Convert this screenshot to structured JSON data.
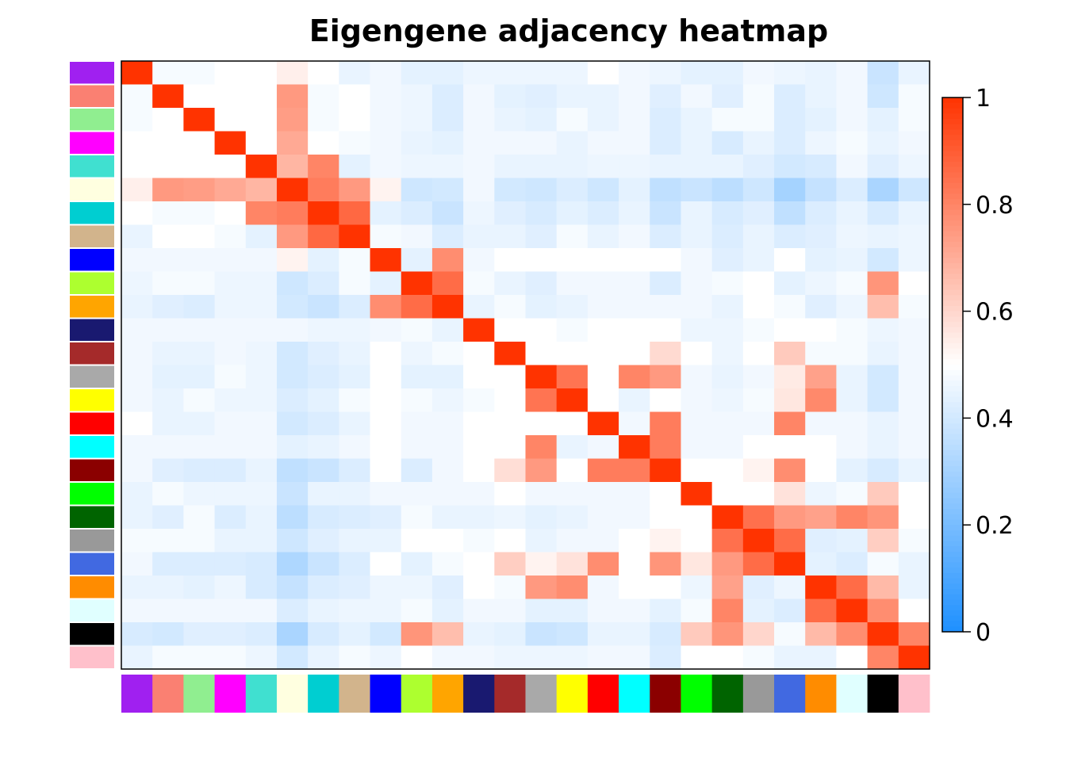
{
  "chart_data": {
    "type": "heatmap",
    "title": "Eigengene adjacency heatmap",
    "modules": [
      "purple",
      "salmon",
      "lightgreen",
      "magenta",
      "turquoise",
      "lightyellow",
      "darkturquoise",
      "tan",
      "blue",
      "greenyellow",
      "orange",
      "midnightblue",
      "brown",
      "darkgrey",
      "yellow",
      "red",
      "cyan",
      "darkred",
      "green",
      "darkgreen",
      "grey60",
      "royalblue",
      "darkorange",
      "lightcyan",
      "black",
      "pink"
    ],
    "module_colors": [
      "#a020f0",
      "#fa8072",
      "#90ee90",
      "#ff00ff",
      "#40e0d0",
      "#ffffe0",
      "#00ced1",
      "#d2b48c",
      "#0000ff",
      "#adff2f",
      "#ffa500",
      "#191970",
      "#a52a2a",
      "#a9a9a9",
      "#ffff00",
      "#ff0000",
      "#00ffff",
      "#8b0000",
      "#00ff00",
      "#006400",
      "#999999",
      "#4169e1",
      "#ff8c00",
      "#e0ffff",
      "#000000",
      "#ffc0cb"
    ],
    "values": [
      [
        1.0,
        0.48,
        0.48,
        0.5,
        0.5,
        0.54,
        0.5,
        0.45,
        0.47,
        0.44,
        0.44,
        0.46,
        0.46,
        0.46,
        0.46,
        0.5,
        0.47,
        0.46,
        0.44,
        0.44,
        0.47,
        0.46,
        0.45,
        0.47,
        0.38,
        0.45
      ],
      [
        0.48,
        1.0,
        0.5,
        0.5,
        0.5,
        0.75,
        0.48,
        0.5,
        0.47,
        0.46,
        0.42,
        0.47,
        0.44,
        0.43,
        0.45,
        0.45,
        0.47,
        0.43,
        0.47,
        0.43,
        0.48,
        0.42,
        0.45,
        0.47,
        0.39,
        0.48
      ],
      [
        0.48,
        0.5,
        1.0,
        0.5,
        0.5,
        0.74,
        0.48,
        0.5,
        0.47,
        0.46,
        0.42,
        0.47,
        0.45,
        0.44,
        0.48,
        0.45,
        0.47,
        0.42,
        0.45,
        0.48,
        0.48,
        0.42,
        0.44,
        0.47,
        0.44,
        0.48
      ],
      [
        0.5,
        0.5,
        0.5,
        1.0,
        0.5,
        0.71,
        0.5,
        0.48,
        0.47,
        0.45,
        0.44,
        0.47,
        0.47,
        0.47,
        0.45,
        0.47,
        0.47,
        0.42,
        0.45,
        0.41,
        0.45,
        0.42,
        0.46,
        0.48,
        0.45,
        0.47
      ],
      [
        0.5,
        0.5,
        0.5,
        0.5,
        1.0,
        0.68,
        0.8,
        0.44,
        0.47,
        0.46,
        0.46,
        0.47,
        0.45,
        0.45,
        0.45,
        0.46,
        0.46,
        0.45,
        0.45,
        0.45,
        0.43,
        0.4,
        0.41,
        0.47,
        0.43,
        0.46
      ],
      [
        0.54,
        0.75,
        0.74,
        0.71,
        0.68,
        1.0,
        0.82,
        0.75,
        0.53,
        0.39,
        0.4,
        0.47,
        0.4,
        0.39,
        0.42,
        0.39,
        0.44,
        0.36,
        0.38,
        0.35,
        0.39,
        0.3,
        0.37,
        0.42,
        0.31,
        0.39
      ],
      [
        0.5,
        0.48,
        0.48,
        0.5,
        0.8,
        0.82,
        1.0,
        0.87,
        0.44,
        0.42,
        0.38,
        0.46,
        0.43,
        0.41,
        0.44,
        0.42,
        0.45,
        0.38,
        0.45,
        0.41,
        0.43,
        0.36,
        0.42,
        0.45,
        0.41,
        0.45
      ],
      [
        0.45,
        0.5,
        0.5,
        0.48,
        0.44,
        0.75,
        0.87,
        1.0,
        0.48,
        0.47,
        0.42,
        0.45,
        0.45,
        0.43,
        0.48,
        0.45,
        0.47,
        0.42,
        0.45,
        0.42,
        0.45,
        0.42,
        0.43,
        0.46,
        0.45,
        0.46
      ],
      [
        0.47,
        0.47,
        0.47,
        0.47,
        0.47,
        0.53,
        0.44,
        0.48,
        1.0,
        0.44,
        0.78,
        0.47,
        0.5,
        0.5,
        0.5,
        0.5,
        0.5,
        0.5,
        0.47,
        0.43,
        0.45,
        0.5,
        0.44,
        0.45,
        0.4,
        0.46
      ],
      [
        0.46,
        0.48,
        0.48,
        0.46,
        0.46,
        0.39,
        0.42,
        0.48,
        0.44,
        1.0,
        0.86,
        0.48,
        0.45,
        0.43,
        0.47,
        0.47,
        0.47,
        0.42,
        0.47,
        0.48,
        0.5,
        0.44,
        0.46,
        0.48,
        0.76,
        0.5
      ],
      [
        0.45,
        0.43,
        0.42,
        0.46,
        0.46,
        0.4,
        0.38,
        0.42,
        0.78,
        0.86,
        1.0,
        0.45,
        0.48,
        0.44,
        0.45,
        0.47,
        0.47,
        0.47,
        0.47,
        0.45,
        0.5,
        0.48,
        0.43,
        0.46,
        0.66,
        0.48
      ],
      [
        0.47,
        0.47,
        0.47,
        0.47,
        0.47,
        0.47,
        0.46,
        0.46,
        0.47,
        0.48,
        0.45,
        1.0,
        0.5,
        0.5,
        0.48,
        0.5,
        0.5,
        0.5,
        0.46,
        0.46,
        0.48,
        0.5,
        0.5,
        0.48,
        0.46,
        0.47
      ],
      [
        0.47,
        0.45,
        0.45,
        0.47,
        0.46,
        0.4,
        0.43,
        0.45,
        0.5,
        0.46,
        0.48,
        0.5,
        1.0,
        0.5,
        0.5,
        0.5,
        0.5,
        0.59,
        0.5,
        0.46,
        0.5,
        0.63,
        0.48,
        0.48,
        0.45,
        0.47
      ],
      [
        0.47,
        0.44,
        0.44,
        0.48,
        0.46,
        0.4,
        0.42,
        0.44,
        0.5,
        0.44,
        0.44,
        0.5,
        0.5,
        1.0,
        0.84,
        0.5,
        0.8,
        0.75,
        0.47,
        0.45,
        0.47,
        0.55,
        0.73,
        0.45,
        0.4,
        0.47
      ],
      [
        0.47,
        0.45,
        0.48,
        0.46,
        0.46,
        0.42,
        0.44,
        0.48,
        0.5,
        0.48,
        0.46,
        0.48,
        0.5,
        0.84,
        1.0,
        0.5,
        0.45,
        0.5,
        0.47,
        0.46,
        0.48,
        0.56,
        0.79,
        0.45,
        0.4,
        0.47
      ],
      [
        0.5,
        0.45,
        0.45,
        0.47,
        0.47,
        0.4,
        0.42,
        0.45,
        0.5,
        0.47,
        0.47,
        0.5,
        0.5,
        0.5,
        0.5,
        1.0,
        0.47,
        0.82,
        0.47,
        0.47,
        0.47,
        0.8,
        0.47,
        0.47,
        0.45,
        0.47
      ],
      [
        0.47,
        0.47,
        0.47,
        0.47,
        0.47,
        0.44,
        0.45,
        0.47,
        0.5,
        0.47,
        0.47,
        0.5,
        0.5,
        0.8,
        0.45,
        0.47,
        1.0,
        0.82,
        0.47,
        0.47,
        0.5,
        0.5,
        0.5,
        0.47,
        0.45,
        0.47
      ],
      [
        0.47,
        0.43,
        0.42,
        0.42,
        0.45,
        0.36,
        0.38,
        0.42,
        0.5,
        0.42,
        0.47,
        0.5,
        0.58,
        0.75,
        0.5,
        0.82,
        0.82,
        1.0,
        0.5,
        0.5,
        0.53,
        0.78,
        0.5,
        0.44,
        0.41,
        0.45
      ],
      [
        0.45,
        0.48,
        0.46,
        0.46,
        0.46,
        0.38,
        0.45,
        0.45,
        0.47,
        0.47,
        0.47,
        0.47,
        0.5,
        0.47,
        0.47,
        0.47,
        0.47,
        0.5,
        1.0,
        0.5,
        0.5,
        0.57,
        0.46,
        0.48,
        0.63,
        0.5
      ],
      [
        0.45,
        0.43,
        0.48,
        0.42,
        0.45,
        0.35,
        0.41,
        0.42,
        0.43,
        0.48,
        0.45,
        0.45,
        0.46,
        0.44,
        0.45,
        0.47,
        0.47,
        0.5,
        0.5,
        1.0,
        0.85,
        0.75,
        0.73,
        0.8,
        0.76,
        0.5
      ],
      [
        0.48,
        0.48,
        0.48,
        0.45,
        0.45,
        0.39,
        0.43,
        0.45,
        0.45,
        0.5,
        0.5,
        0.48,
        0.5,
        0.45,
        0.47,
        0.47,
        0.5,
        0.53,
        0.5,
        0.85,
        1.0,
        0.86,
        0.43,
        0.44,
        0.62,
        0.48
      ],
      [
        0.47,
        0.42,
        0.42,
        0.42,
        0.41,
        0.32,
        0.38,
        0.42,
        0.5,
        0.44,
        0.48,
        0.5,
        0.62,
        0.53,
        0.57,
        0.78,
        0.5,
        0.76,
        0.56,
        0.75,
        0.86,
        1.0,
        0.44,
        0.42,
        0.48,
        0.45
      ],
      [
        0.45,
        0.45,
        0.44,
        0.46,
        0.41,
        0.37,
        0.42,
        0.43,
        0.46,
        0.46,
        0.43,
        0.5,
        0.48,
        0.75,
        0.78,
        0.47,
        0.5,
        0.5,
        0.46,
        0.73,
        0.43,
        0.46,
        1.0,
        0.86,
        0.67,
        0.45
      ],
      [
        0.47,
        0.47,
        0.47,
        0.47,
        0.47,
        0.42,
        0.45,
        0.46,
        0.46,
        0.48,
        0.44,
        0.47,
        0.47,
        0.44,
        0.44,
        0.47,
        0.47,
        0.44,
        0.48,
        0.8,
        0.44,
        0.42,
        0.86,
        1.0,
        0.78,
        0.5
      ],
      [
        0.41,
        0.4,
        0.43,
        0.43,
        0.42,
        0.31,
        0.41,
        0.44,
        0.4,
        0.76,
        0.66,
        0.45,
        0.44,
        0.38,
        0.39,
        0.45,
        0.45,
        0.41,
        0.63,
        0.76,
        0.6,
        0.48,
        0.67,
        0.78,
        1.0,
        0.8
      ],
      [
        0.45,
        0.48,
        0.48,
        0.48,
        0.46,
        0.4,
        0.45,
        0.48,
        0.46,
        0.5,
        0.47,
        0.47,
        0.46,
        0.46,
        0.46,
        0.47,
        0.47,
        0.42,
        0.5,
        0.5,
        0.48,
        0.45,
        0.45,
        0.5,
        0.8,
        1.0
      ]
    ],
    "colorbar": {
      "range": [
        0,
        1
      ],
      "ticks": [
        "0",
        "0.2",
        "0.4",
        "0.6",
        "0.8",
        "1"
      ],
      "low_color": "#1e90ff",
      "mid_color": "#ffffff",
      "high_color": "#ff3300"
    }
  }
}
